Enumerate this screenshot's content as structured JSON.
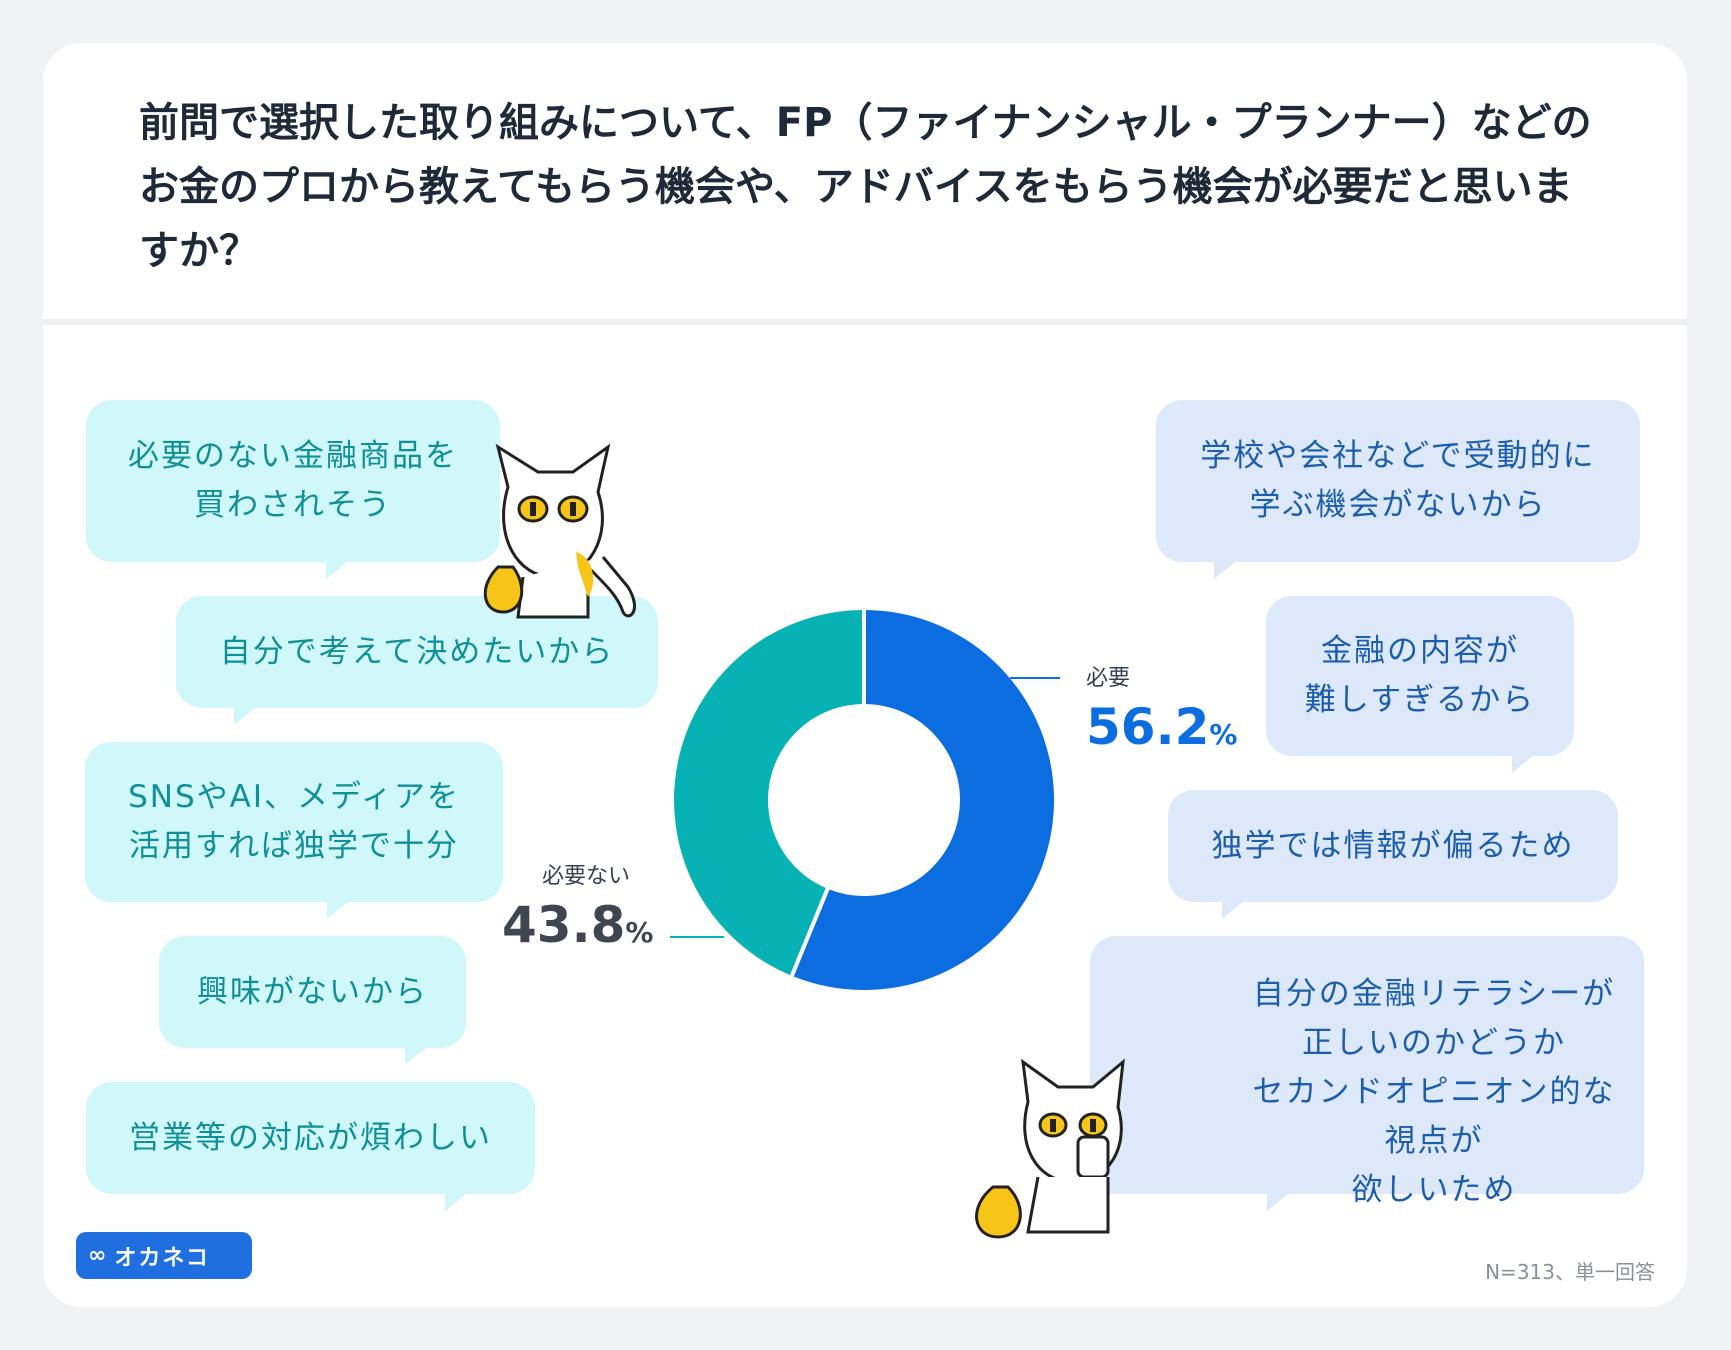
{
  "title": "前問で選択した取り組みについて、FP（ファイナンシャル・プランナー）などのお金のプロから教えてもらう機会や、アドバイスをもらう機会が必要だと思いますか？",
  "chart_data": {
    "type": "pie",
    "donut": true,
    "slices": [
      {
        "label": "必要",
        "value": 56.2,
        "value_label": "56.2",
        "unit": "%",
        "color": "#0b6de0"
      },
      {
        "label": "必要ない",
        "value": 43.8,
        "value_label": "43.8",
        "unit": "%",
        "color": "#06b2b3"
      }
    ]
  },
  "reasons_not_needed": [
    "必要のない金融商品を\n買わされそう",
    "自分で考えて決めたいから",
    "SNSやAI、メディアを\n活用すれば独学で十分",
    "興味がないから",
    "営業等の対応が煩わしい"
  ],
  "reasons_needed": [
    "学校や会社などで受動的に\n学ぶ機会がないから",
    "金融の内容が\n難しすぎるから",
    "独学では情報が偏るため",
    "自分の金融リテラシーが\n正しいのかどうか\nセカンドオピニオン的な視点が\n欲しいため"
  ],
  "logo_text": "オカネコ",
  "note": "N=313、単一回答",
  "colors": {
    "teal_bubble": "#d0f7f9",
    "blue_bubble": "#dde9fb",
    "needed": "#0b6de0",
    "not_needed": "#06b2b3"
  }
}
